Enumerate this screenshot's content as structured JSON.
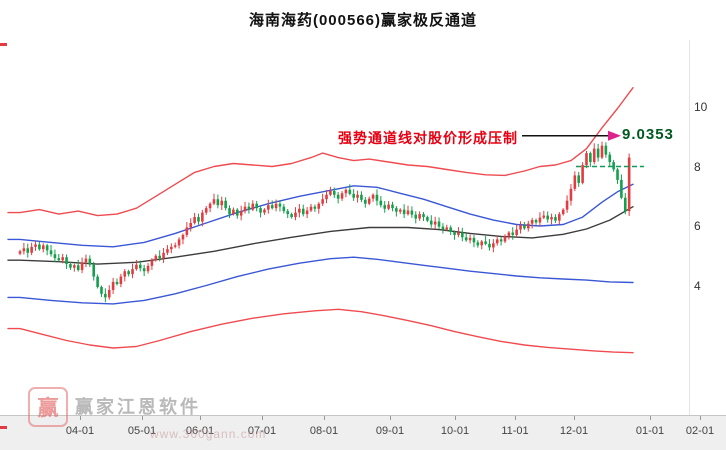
{
  "annotation": {
    "text": "强势通道线对股价形成压制",
    "price_label": "9.0353"
  },
  "watermark": {
    "logo_char": "赢",
    "name": "赢家江恩软件",
    "site": "www.360gann.com"
  },
  "colors": {
    "annotation_red": "#e60012",
    "arrow_magenta": "#e0218a",
    "price_label_green": "#00591f",
    "pressure_line_black": "#111111",
    "green_dashed": "#0f9d58",
    "axis_band_gray": "#efefef"
  },
  "chart_data": {
    "type": "candlestick",
    "title": "海南海药(000566)赢家极反通道",
    "x_tick_labels": [
      "04-01",
      "05-01",
      "06-01",
      "07-01",
      "08-01",
      "09-01",
      "10-01",
      "11-01",
      "12-01",
      "01-01",
      "02-01"
    ],
    "y_ticks": [
      10,
      8,
      6,
      4
    ],
    "ylim": [
      0,
      11
    ],
    "up_color": "#e23b41",
    "down_color": "#12a04c",
    "closes": [
      5.15,
      5.25,
      5.1,
      5.3,
      5.38,
      5.22,
      5.35,
      5.18,
      5.05,
      4.92,
      4.85,
      4.95,
      4.72,
      4.6,
      4.68,
      4.52,
      4.78,
      4.9,
      4.7,
      4.3,
      3.95,
      3.72,
      3.6,
      3.85,
      4.12,
      4.05,
      4.3,
      4.48,
      4.38,
      4.55,
      4.7,
      4.58,
      4.48,
      4.66,
      4.85,
      5.0,
      4.92,
      5.1,
      5.22,
      5.3,
      5.35,
      5.55,
      5.7,
      5.95,
      6.1,
      6.3,
      6.15,
      6.45,
      6.6,
      6.75,
      6.9,
      6.7,
      6.85,
      6.6,
      6.4,
      6.55,
      6.35,
      6.5,
      6.65,
      6.55,
      6.75,
      6.6,
      6.45,
      6.55,
      6.7,
      6.6,
      6.75,
      6.65,
      6.5,
      6.4,
      6.3,
      6.45,
      6.58,
      6.4,
      6.52,
      6.65,
      6.58,
      6.75,
      6.9,
      7.05,
      7.18,
      7.05,
      6.92,
      7.1,
      7.22,
      7.08,
      6.95,
      7.05,
      6.88,
      6.75,
      6.92,
      7.05,
      6.85,
      6.7,
      6.58,
      6.72,
      6.6,
      6.48,
      6.55,
      6.4,
      6.52,
      6.38,
      6.25,
      6.4,
      6.3,
      6.18,
      6.05,
      6.15,
      5.98,
      5.88,
      5.95,
      5.8,
      5.7,
      5.78,
      5.62,
      5.52,
      5.6,
      5.45,
      5.35,
      5.48,
      5.4,
      5.28,
      5.42,
      5.55,
      5.48,
      5.65,
      5.78,
      5.7,
      5.88,
      6.02,
      5.92,
      6.08,
      6.2,
      6.12,
      6.28,
      6.35,
      6.22,
      6.3,
      6.18,
      6.4,
      6.55,
      6.85,
      7.25,
      7.7,
      7.45,
      8.05,
      8.45,
      8.15,
      8.6,
      8.3,
      8.7,
      8.4,
      8.15,
      7.9,
      7.55,
      6.95,
      6.5,
      8.3
    ],
    "channel_lines": [
      {
        "name": "upper-extreme-red",
        "color": "#ef4b50",
        "anchors": [
          [
            0,
            6.45
          ],
          [
            5,
            6.55
          ],
          [
            10,
            6.4
          ],
          [
            15,
            6.5
          ],
          [
            20,
            6.35
          ],
          [
            25,
            6.4
          ],
          [
            30,
            6.6
          ],
          [
            35,
            7.0
          ],
          [
            40,
            7.4
          ],
          [
            45,
            7.8
          ],
          [
            50,
            8.0
          ],
          [
            55,
            8.1
          ],
          [
            60,
            8.05
          ],
          [
            65,
            8.0
          ],
          [
            70,
            8.1
          ],
          [
            75,
            8.3
          ],
          [
            78,
            8.45
          ],
          [
            82,
            8.3
          ],
          [
            86,
            8.2
          ],
          [
            90,
            8.25
          ],
          [
            95,
            8.15
          ],
          [
            100,
            8.05
          ],
          [
            105,
            8.0
          ],
          [
            110,
            7.9
          ],
          [
            115,
            7.8
          ],
          [
            120,
            7.72
          ],
          [
            125,
            7.7
          ],
          [
            130,
            7.85
          ],
          [
            134,
            8.0
          ],
          [
            138,
            8.05
          ],
          [
            142,
            8.2
          ],
          [
            146,
            8.6
          ],
          [
            150,
            9.3
          ],
          [
            154,
            9.95
          ],
          [
            158,
            10.65
          ]
        ]
      },
      {
        "name": "upper-blue",
        "color": "#3a57d6",
        "anchors": [
          [
            0,
            5.55
          ],
          [
            8,
            5.45
          ],
          [
            16,
            5.35
          ],
          [
            24,
            5.3
          ],
          [
            32,
            5.45
          ],
          [
            40,
            5.75
          ],
          [
            48,
            6.1
          ],
          [
            56,
            6.45
          ],
          [
            64,
            6.75
          ],
          [
            72,
            7.0
          ],
          [
            80,
            7.2
          ],
          [
            86,
            7.35
          ],
          [
            92,
            7.3
          ],
          [
            98,
            7.1
          ],
          [
            104,
            6.9
          ],
          [
            110,
            6.65
          ],
          [
            116,
            6.4
          ],
          [
            122,
            6.2
          ],
          [
            128,
            6.05
          ],
          [
            134,
            6.0
          ],
          [
            140,
            6.05
          ],
          [
            145,
            6.3
          ],
          [
            150,
            6.8
          ],
          [
            154,
            7.15
          ],
          [
            158,
            7.4
          ]
        ]
      },
      {
        "name": "mid-black",
        "color": "#3c3c3c",
        "anchors": [
          [
            0,
            4.85
          ],
          [
            10,
            4.8
          ],
          [
            20,
            4.72
          ],
          [
            30,
            4.78
          ],
          [
            40,
            4.95
          ],
          [
            50,
            5.15
          ],
          [
            60,
            5.4
          ],
          [
            70,
            5.62
          ],
          [
            80,
            5.82
          ],
          [
            90,
            5.95
          ],
          [
            100,
            5.95
          ],
          [
            108,
            5.88
          ],
          [
            116,
            5.75
          ],
          [
            124,
            5.65
          ],
          [
            132,
            5.6
          ],
          [
            140,
            5.72
          ],
          [
            146,
            5.9
          ],
          [
            152,
            6.2
          ],
          [
            158,
            6.65
          ]
        ]
      },
      {
        "name": "lower-blue",
        "color": "#3a57d6",
        "anchors": [
          [
            0,
            3.6
          ],
          [
            8,
            3.5
          ],
          [
            16,
            3.42
          ],
          [
            24,
            3.38
          ],
          [
            32,
            3.5
          ],
          [
            40,
            3.72
          ],
          [
            48,
            4.0
          ],
          [
            56,
            4.3
          ],
          [
            64,
            4.55
          ],
          [
            72,
            4.75
          ],
          [
            80,
            4.9
          ],
          [
            86,
            4.95
          ],
          [
            92,
            4.88
          ],
          [
            98,
            4.78
          ],
          [
            104,
            4.68
          ],
          [
            110,
            4.58
          ],
          [
            116,
            4.48
          ],
          [
            122,
            4.4
          ],
          [
            128,
            4.32
          ],
          [
            134,
            4.26
          ],
          [
            140,
            4.22
          ],
          [
            146,
            4.18
          ],
          [
            152,
            4.12
          ],
          [
            158,
            4.1
          ]
        ]
      },
      {
        "name": "lower-extreme-red",
        "color": "#ef4b50",
        "anchors": [
          [
            0,
            2.55
          ],
          [
            6,
            2.35
          ],
          [
            12,
            2.15
          ],
          [
            18,
            2.0
          ],
          [
            24,
            1.9
          ],
          [
            30,
            1.95
          ],
          [
            36,
            2.15
          ],
          [
            44,
            2.45
          ],
          [
            52,
            2.7
          ],
          [
            60,
            2.9
          ],
          [
            68,
            3.05
          ],
          [
            76,
            3.15
          ],
          [
            82,
            3.2
          ],
          [
            88,
            3.12
          ],
          [
            94,
            2.98
          ],
          [
            100,
            2.82
          ],
          [
            106,
            2.65
          ],
          [
            112,
            2.45
          ],
          [
            118,
            2.28
          ],
          [
            124,
            2.12
          ],
          [
            130,
            2.0
          ],
          [
            136,
            1.92
          ],
          [
            142,
            1.86
          ],
          [
            148,
            1.8
          ],
          [
            153,
            1.76
          ],
          [
            158,
            1.74
          ]
        ]
      }
    ],
    "markers": {
      "pressure_line_price": 9.0353,
      "green_dashed_price": 8.0
    }
  }
}
